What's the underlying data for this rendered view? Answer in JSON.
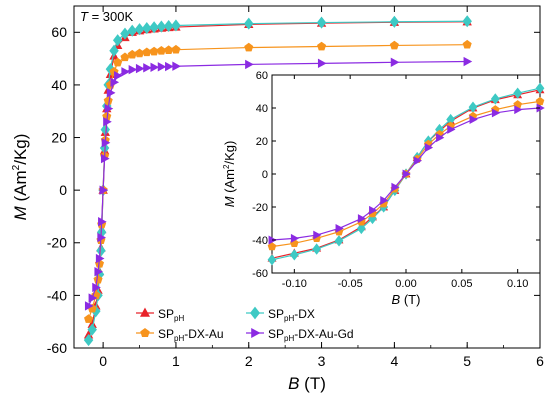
{
  "chart_data": [
    {
      "type": "scatter",
      "panel": "main",
      "annotation_var": "T",
      "annotation_rest": " = 300K",
      "xlabel_var": "B",
      "xlabel_unit": " (T)",
      "ylabel_var": "M",
      "ylabel_unit_a": " (Am",
      "ylabel_unit_sup": "2",
      "ylabel_unit_b": "/Kg)",
      "xlim": [
        -0.4,
        6
      ],
      "ylim": [
        -60,
        70
      ],
      "xticks": [
        0,
        1,
        2,
        3,
        4,
        5,
        6
      ],
      "xtick_labels": [
        "0",
        "1",
        "2",
        "3",
        "4",
        "5",
        "6"
      ],
      "yticks": [
        -60,
        -40,
        -20,
        0,
        20,
        40,
        60
      ],
      "ytick_labels": [
        "-60",
        "-40",
        "-20",
        "0",
        "20",
        "40",
        "60"
      ],
      "legend_position": "bottom-left",
      "series": [
        {
          "name_base": "SP",
          "name_sub": "pH",
          "name_rest": "",
          "color": "#e8232a",
          "marker": "triangle-up",
          "ms": 2.0,
          "x": [
            -0.2,
            -0.15,
            -0.1,
            -0.07,
            -0.05,
            -0.03,
            -0.02,
            0,
            0.02,
            0.03,
            0.05,
            0.07,
            0.1,
            0.15,
            0.2,
            0.3,
            0.4,
            0.5,
            0.6,
            0.7,
            0.8,
            0.9,
            1.0,
            2,
            3,
            4,
            5
          ],
          "y": [
            -55,
            -51,
            -44,
            -38,
            -31,
            -22,
            -15,
            0,
            15,
            22,
            31,
            38,
            44,
            51,
            55,
            58,
            60,
            60.6,
            61,
            61.3,
            61.6,
            61.8,
            62,
            63,
            63.5,
            63.8,
            64
          ]
        },
        {
          "name_base": "SP",
          "name_sub": "pH",
          "name_rest": "-DX",
          "color": "#3ec9c4",
          "marker": "diamond",
          "ms": 2.2,
          "x": [
            -0.2,
            -0.15,
            -0.1,
            -0.07,
            -0.05,
            -0.03,
            -0.02,
            0,
            0.02,
            0.03,
            0.05,
            0.07,
            0.1,
            0.15,
            0.2,
            0.3,
            0.4,
            0.5,
            0.6,
            0.7,
            0.8,
            0.9,
            1.0,
            2,
            3,
            4,
            5
          ],
          "y": [
            -57,
            -53,
            -46,
            -40,
            -32,
            -23,
            -16,
            0,
            16,
            23,
            32,
            40,
            46,
            53,
            57,
            59.5,
            60.6,
            61.2,
            61.6,
            61.9,
            62.2,
            62.4,
            62.6,
            63.3,
            63.7,
            64,
            64.2
          ]
        },
        {
          "name_base": "SP",
          "name_sub": "pH",
          "name_rest": "-DX-Au",
          "color": "#f7941d",
          "marker": "pentagon",
          "ms": 2.0,
          "x": [
            -0.2,
            -0.15,
            -0.1,
            -0.07,
            -0.05,
            -0.03,
            -0.02,
            0,
            0.02,
            0.03,
            0.05,
            0.07,
            0.1,
            0.15,
            0.2,
            0.3,
            0.4,
            0.5,
            0.6,
            0.7,
            0.8,
            0.9,
            1.0,
            2,
            3,
            4,
            5
          ],
          "y": [
            -49,
            -45,
            -40,
            -34,
            -28,
            -19,
            -13,
            0,
            13,
            19,
            28,
            34,
            40,
            45,
            48.5,
            50.5,
            51.5,
            52,
            52.4,
            52.7,
            53,
            53.2,
            53.4,
            54.2,
            54.6,
            55,
            55.3
          ]
        },
        {
          "name_base": "SP",
          "name_sub": "pH",
          "name_rest": "-DX-Au-Gd",
          "color": "#8b2be2",
          "marker": "triangle-right",
          "ms": 2.0,
          "x": [
            -0.2,
            -0.15,
            -0.1,
            -0.07,
            -0.05,
            -0.03,
            -0.02,
            0,
            0.02,
            0.03,
            0.05,
            0.07,
            0.1,
            0.15,
            0.2,
            0.3,
            0.4,
            0.5,
            0.6,
            0.7,
            0.8,
            0.9,
            1.0,
            2,
            3,
            4,
            5
          ],
          "y": [
            -44,
            -41,
            -37,
            -31,
            -26,
            -18,
            -12,
            0,
            12,
            18,
            26,
            31,
            37,
            41,
            43.5,
            45,
            45.8,
            46.2,
            46.5,
            46.7,
            46.9,
            47,
            47.1,
            47.8,
            48.2,
            48.6,
            48.9
          ]
        }
      ]
    },
    {
      "type": "scatter",
      "panel": "inset",
      "xlabel_var": "B",
      "xlabel_unit": " (T)",
      "ylabel_var": "M",
      "ylabel_unit_a": " (Am",
      "ylabel_unit_sup": "2",
      "ylabel_unit_b": "/Kg)",
      "xlim": [
        -0.12,
        0.12
      ],
      "ylim": [
        -60,
        60
      ],
      "xticks": [
        -0.1,
        -0.05,
        0,
        0.05,
        0.1
      ],
      "xtick_labels": [
        "-0.10",
        "-0.05",
        "0.00",
        "0.05",
        "0.10"
      ],
      "yticks": [
        -60,
        -40,
        -20,
        0,
        20,
        40,
        60
      ],
      "ytick_labels": [
        "-60",
        "-40",
        "-20",
        "0",
        "20",
        "40",
        "60"
      ],
      "series": [
        {
          "color": "#e8232a",
          "marker": "triangle-up",
          "ms": 2.6,
          "x": [
            -0.12,
            -0.1,
            -0.08,
            -0.06,
            -0.04,
            -0.03,
            -0.02,
            -0.01,
            0,
            0.01,
            0.02,
            0.03,
            0.04,
            0.06,
            0.08,
            0.1,
            0.12
          ],
          "y": [
            -51,
            -48,
            -45,
            -40,
            -32,
            -26,
            -20,
            -10,
            0,
            10,
            20,
            26,
            32,
            40,
            45,
            48,
            51
          ]
        },
        {
          "color": "#3ec9c4",
          "marker": "diamond",
          "ms": 2.8,
          "x": [
            -0.12,
            -0.1,
            -0.08,
            -0.06,
            -0.04,
            -0.03,
            -0.02,
            -0.01,
            0,
            0.01,
            0.02,
            0.03,
            0.04,
            0.06,
            0.08,
            0.1,
            0.12
          ],
          "y": [
            -52,
            -49,
            -45.5,
            -40.5,
            -33,
            -27,
            -20,
            -10,
            0,
            10,
            20,
            27,
            33,
            40.5,
            45.5,
            49,
            52
          ]
        },
        {
          "color": "#f7941d",
          "marker": "pentagon",
          "ms": 2.6,
          "x": [
            -0.12,
            -0.1,
            -0.08,
            -0.06,
            -0.04,
            -0.03,
            -0.02,
            -0.01,
            0,
            0.01,
            0.02,
            0.03,
            0.04,
            0.06,
            0.08,
            0.1,
            0.12
          ],
          "y": [
            -44,
            -42,
            -39,
            -35,
            -29,
            -24,
            -18,
            -9,
            0,
            9,
            18,
            24,
            29,
            35,
            39,
            42,
            44
          ]
        },
        {
          "color": "#8b2be2",
          "marker": "triangle-right",
          "ms": 2.6,
          "x": [
            -0.12,
            -0.1,
            -0.08,
            -0.06,
            -0.04,
            -0.03,
            -0.02,
            -0.01,
            0,
            0.01,
            0.02,
            0.03,
            0.04,
            0.06,
            0.08,
            0.1,
            0.12
          ],
          "y": [
            -40,
            -39,
            -37,
            -33,
            -27,
            -22,
            -16,
            -8,
            0,
            8,
            16,
            22,
            27,
            33,
            37,
            39,
            40
          ]
        }
      ]
    }
  ]
}
